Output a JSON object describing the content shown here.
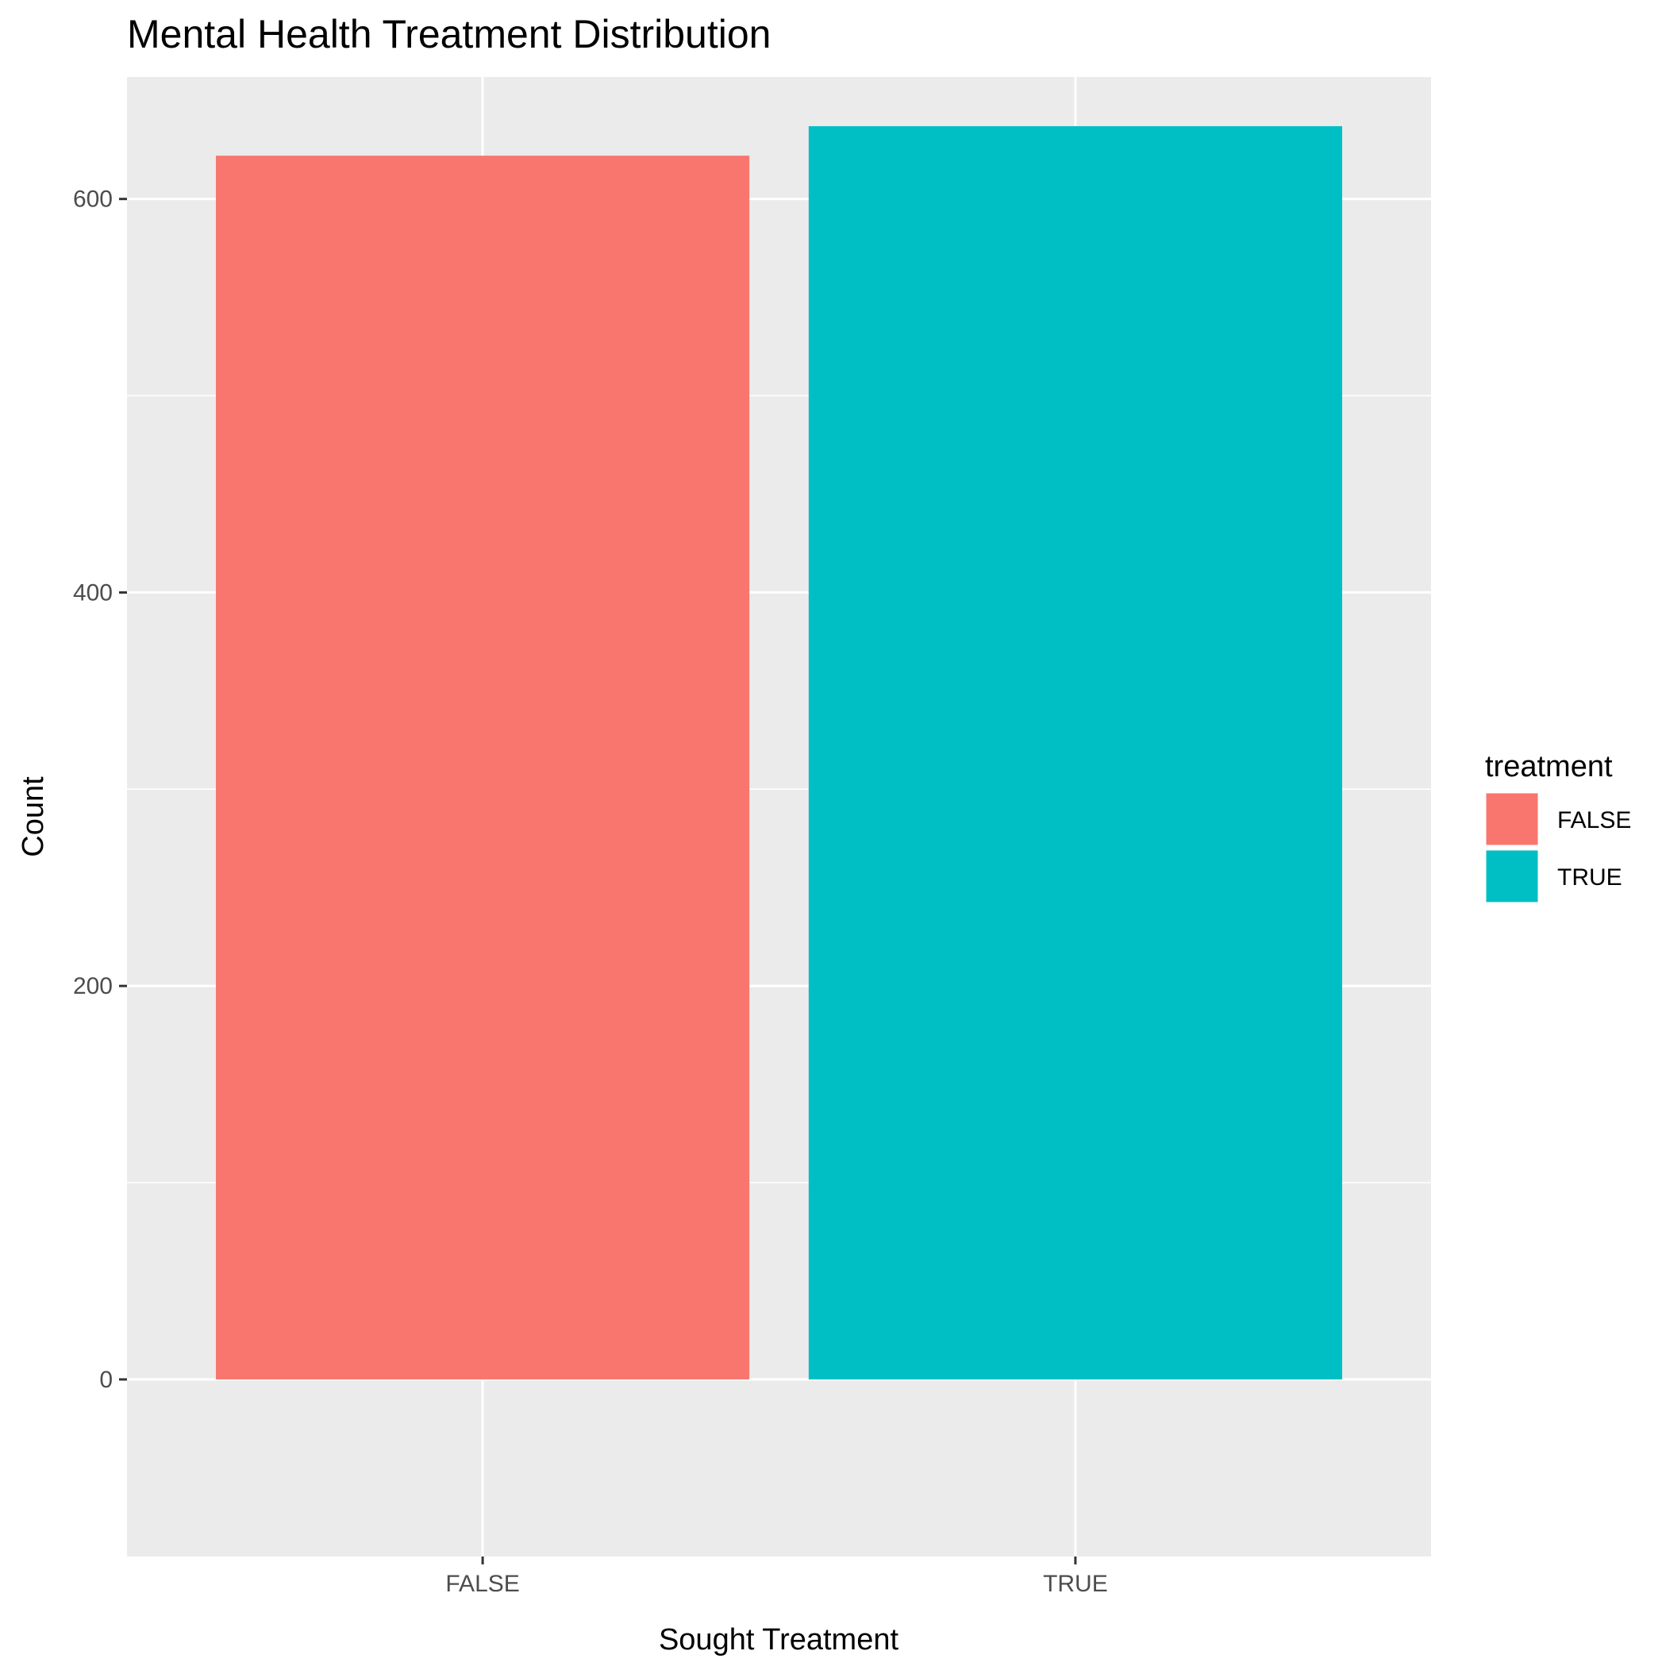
{
  "chart_data": {
    "type": "bar",
    "title": "Mental Health Treatment Distribution",
    "xlabel": "Sought Treatment",
    "ylabel": "Count",
    "categories": [
      "FALSE",
      "TRUE"
    ],
    "values": [
      622,
      637
    ],
    "colors": [
      "#F8766D",
      "#00BFC4"
    ],
    "ylim": [
      -90,
      662
    ],
    "yticks": [
      0,
      200,
      400,
      600
    ],
    "grid": true,
    "panel_background": "#EBEBEB",
    "grid_color": "#FFFFFF",
    "legend": {
      "title": "treatment",
      "position": "right",
      "entries": [
        "FALSE",
        "TRUE"
      ]
    }
  }
}
